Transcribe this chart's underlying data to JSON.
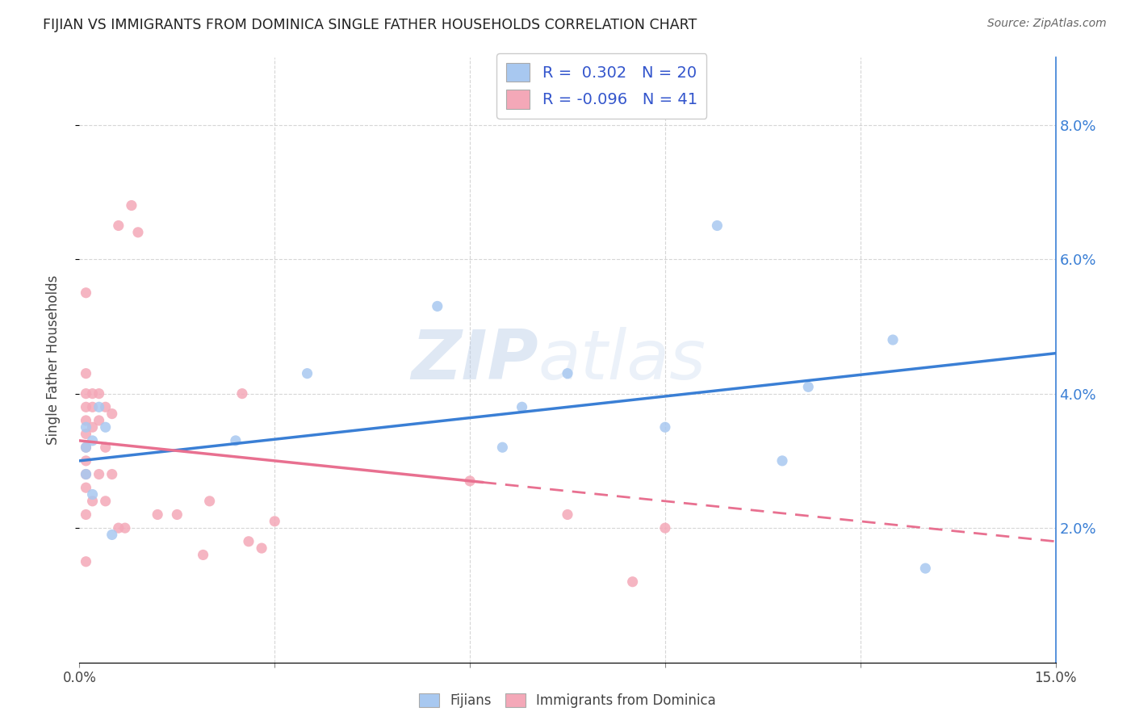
{
  "title": "FIJIAN VS IMMIGRANTS FROM DOMINICA SINGLE FATHER HOUSEHOLDS CORRELATION CHART",
  "source": "Source: ZipAtlas.com",
  "ylabel": "Single Father Households",
  "x_min": 0.0,
  "x_max": 0.15,
  "y_min": 0.0,
  "y_max": 0.09,
  "y_ticks": [
    0.02,
    0.04,
    0.06,
    0.08
  ],
  "y_tick_labels": [
    "2.0%",
    "4.0%",
    "6.0%",
    "8.0%"
  ],
  "x_ticks": [
    0.0,
    0.03,
    0.06,
    0.09,
    0.12,
    0.15
  ],
  "x_tick_labels": [
    "0.0%",
    "",
    "",
    "",
    "",
    "15.0%"
  ],
  "fijian_color": "#a8c8f0",
  "dominica_color": "#f4a8b8",
  "fijian_line_color": "#3a7fd5",
  "dominica_line_color": "#e87090",
  "fijian_R": 0.302,
  "fijian_N": 20,
  "dominica_R": -0.096,
  "dominica_N": 41,
  "legend_text_color": "#3355cc",
  "watermark_zip": "ZIP",
  "watermark_atlas": "atlas",
  "background_color": "#ffffff",
  "grid_color": "#cccccc",
  "fijian_x": [
    0.001,
    0.001,
    0.001,
    0.002,
    0.002,
    0.003,
    0.004,
    0.005,
    0.024,
    0.035,
    0.055,
    0.065,
    0.068,
    0.075,
    0.09,
    0.098,
    0.108,
    0.112,
    0.125,
    0.13
  ],
  "fijian_y": [
    0.028,
    0.032,
    0.035,
    0.025,
    0.033,
    0.038,
    0.035,
    0.019,
    0.033,
    0.043,
    0.053,
    0.032,
    0.038,
    0.043,
    0.035,
    0.065,
    0.03,
    0.041,
    0.048,
    0.014
  ],
  "dominica_x": [
    0.001,
    0.001,
    0.001,
    0.001,
    0.001,
    0.001,
    0.001,
    0.001,
    0.001,
    0.001,
    0.001,
    0.001,
    0.002,
    0.002,
    0.002,
    0.002,
    0.003,
    0.003,
    0.003,
    0.004,
    0.004,
    0.004,
    0.005,
    0.005,
    0.006,
    0.006,
    0.007,
    0.008,
    0.009,
    0.012,
    0.015,
    0.019,
    0.02,
    0.025,
    0.026,
    0.028,
    0.03,
    0.06,
    0.075,
    0.085,
    0.09
  ],
  "dominica_y": [
    0.055,
    0.043,
    0.04,
    0.038,
    0.036,
    0.034,
    0.032,
    0.03,
    0.028,
    0.026,
    0.022,
    0.015,
    0.04,
    0.038,
    0.035,
    0.024,
    0.04,
    0.036,
    0.028,
    0.038,
    0.032,
    0.024,
    0.037,
    0.028,
    0.02,
    0.065,
    0.02,
    0.068,
    0.064,
    0.022,
    0.022,
    0.016,
    0.024,
    0.04,
    0.018,
    0.017,
    0.021,
    0.027,
    0.022,
    0.012,
    0.02
  ]
}
